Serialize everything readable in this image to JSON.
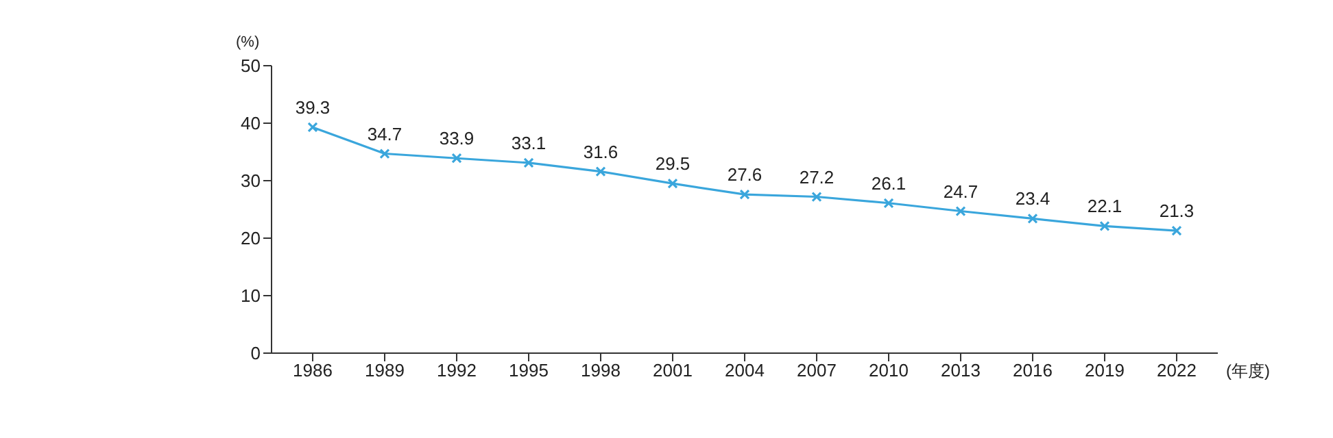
{
  "chart_data": {
    "type": "line",
    "ylabel": "(%)",
    "xlabel": "(年度)",
    "categories": [
      "1986",
      "1989",
      "1992",
      "1995",
      "1998",
      "2001",
      "2004",
      "2007",
      "2010",
      "2013",
      "2016",
      "2019",
      "2022"
    ],
    "series": [
      {
        "color": "#3aa6dc",
        "values": [
          39.3,
          34.7,
          33.9,
          33.1,
          31.6,
          29.5,
          27.6,
          27.2,
          26.1,
          24.7,
          23.4,
          22.1,
          21.3
        ]
      }
    ],
    "ylim": [
      0,
      50
    ],
    "yticks": [
      0,
      10,
      20,
      30,
      40,
      50
    ],
    "data_labels": true,
    "marker": "cross",
    "line_style": "solid",
    "grid": false,
    "legend": false
  }
}
